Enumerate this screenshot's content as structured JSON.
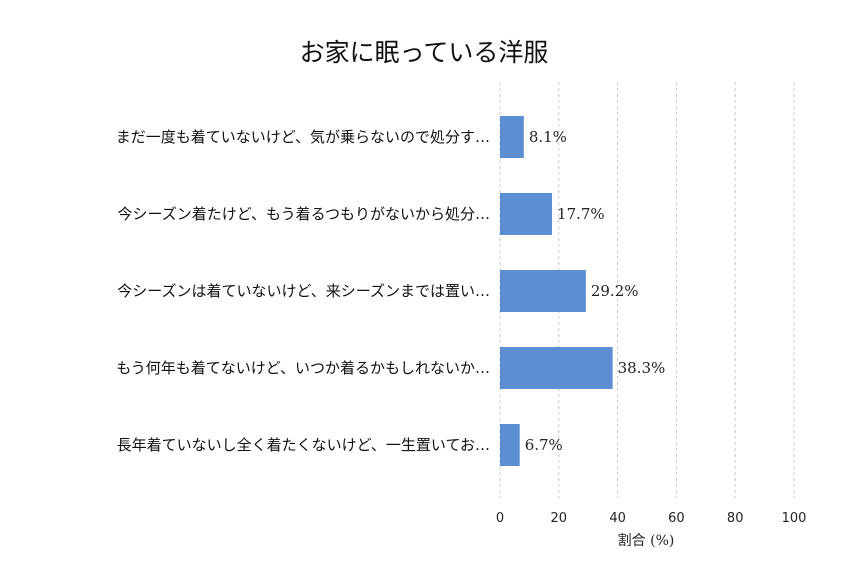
{
  "chart_data": {
    "type": "bar",
    "orientation": "horizontal",
    "title": "お家に眠っている洋服",
    "xlabel": "割合 (%)",
    "ylabel": "",
    "xlim": [
      0,
      100
    ],
    "xticks": [
      0,
      20,
      40,
      60,
      80,
      100
    ],
    "grid": true,
    "bar_color": "#5b8fd1",
    "categories": [
      "まだ一度も着ていないけど、気が乗らないので処分す…",
      "今シーズン着たけど、もう着るつもりがないから処分…",
      "今シーズンは着ていないけど、来シーズンまでは置い…",
      "もう何年も着てないけど、いつか着るかもしれないか…",
      "長年着ていないし全く着たくないけど、一生置いてお…"
    ],
    "values": [
      8.1,
      17.7,
      29.2,
      38.3,
      6.7
    ],
    "value_labels": [
      "8.1%",
      "17.7%",
      "29.2%",
      "38.3%",
      "6.7%"
    ]
  }
}
